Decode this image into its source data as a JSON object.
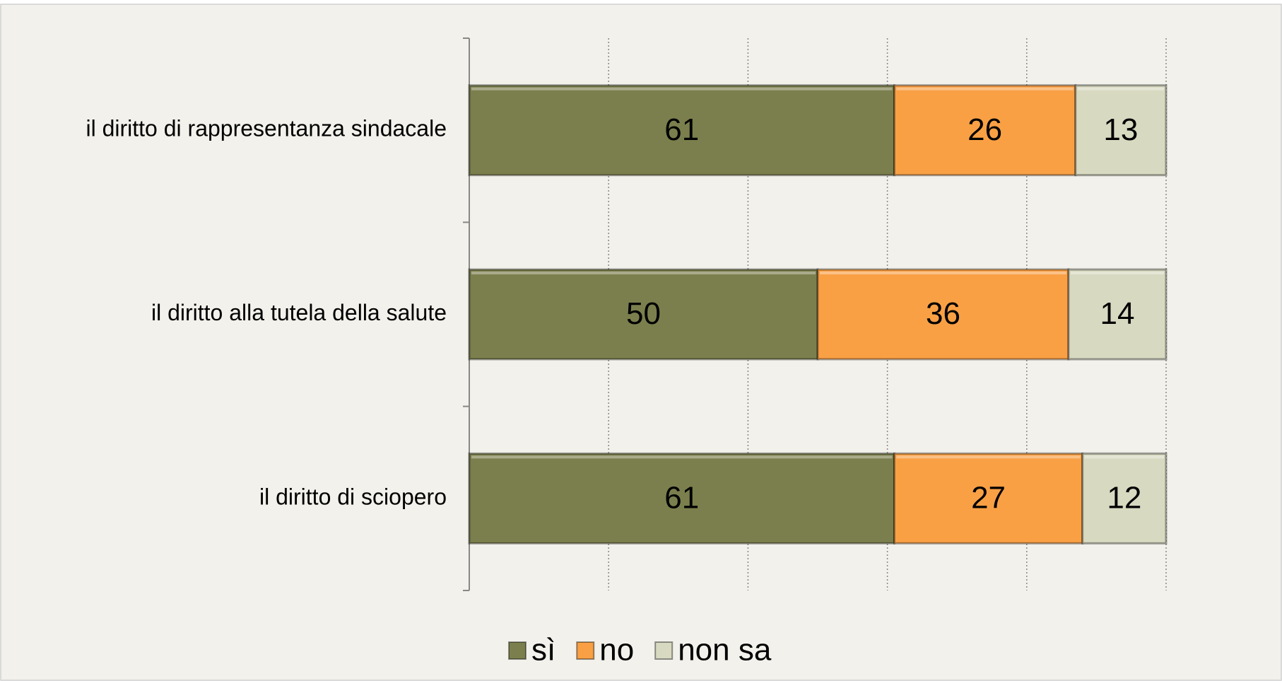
{
  "chart_data": {
    "type": "stacked_barh",
    "categories": [
      "il diritto di rappresentanza sindacale",
      "il diritto alla tutela della salute",
      "il diritto di sciopero"
    ],
    "series": [
      {
        "name": "sì",
        "color": "#7b7f4d",
        "values": [
          61,
          50,
          61
        ]
      },
      {
        "name": "no",
        "color": "#f9a045",
        "values": [
          26,
          36,
          27
        ]
      },
      {
        "name": "non sa",
        "color": "#d8d9c1",
        "values": [
          13,
          14,
          12
        ]
      }
    ],
    "xlim": [
      0,
      100
    ],
    "xticks": [
      0,
      20,
      40,
      60,
      80,
      100
    ],
    "grid": true,
    "legend": "bottom"
  }
}
